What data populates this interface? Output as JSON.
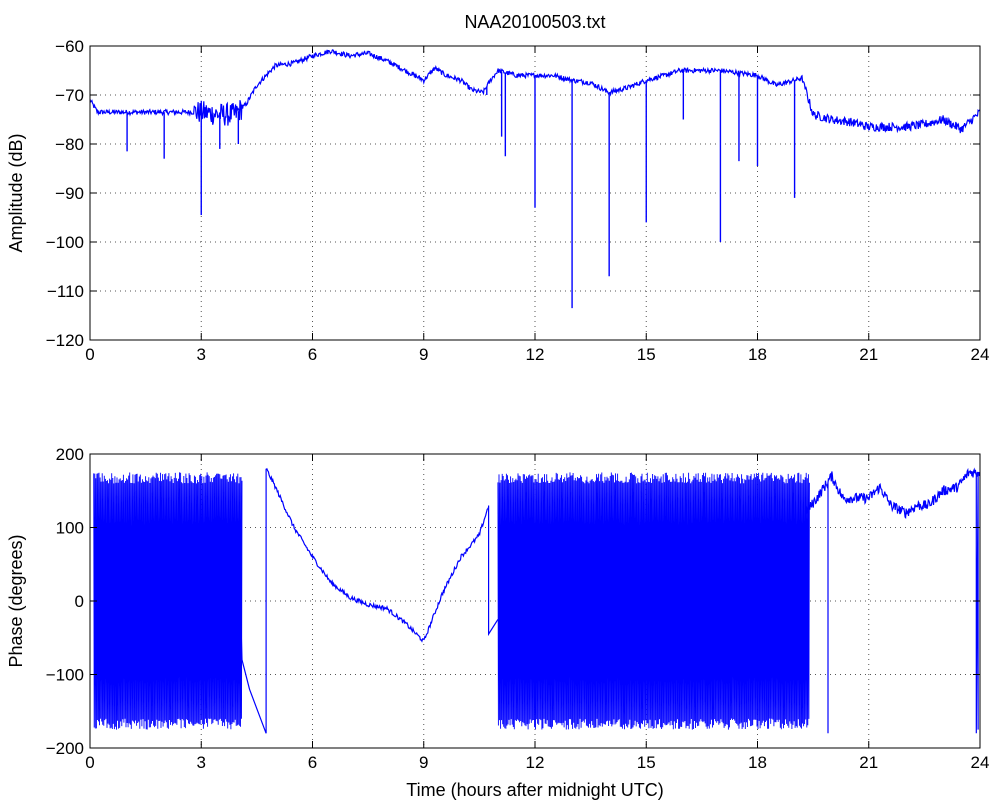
{
  "figure_title": "NAA20100503.txt",
  "colors": {
    "line": "#0000ff",
    "axes": "#000000",
    "grid": "#555555",
    "background": "#ffffff"
  },
  "chart_data": [
    {
      "type": "line",
      "title": "NAA20100503.txt",
      "xlabel": "",
      "ylabel": "Amplitude (dB)",
      "xlim": [
        0,
        24
      ],
      "ylim": [
        -120,
        -60
      ],
      "xticks": [
        0,
        3,
        6,
        9,
        12,
        15,
        18,
        21,
        24
      ],
      "yticks": [
        -60,
        -70,
        -80,
        -90,
        -100,
        -110,
        -120
      ],
      "grid": true,
      "series": [
        {
          "x": [
            0,
            0.2,
            0.5,
            1.0,
            1.5,
            2.0,
            2.5,
            3.0,
            3.5,
            3.9,
            4.2,
            4.5,
            5.0,
            5.5,
            6.0,
            6.5,
            7.0,
            7.5,
            8.0,
            8.5,
            9.0,
            9.3,
            9.6,
            10.0,
            10.3,
            10.6,
            10.8,
            11.0,
            11.5,
            12.0,
            12.5,
            13.0,
            13.5,
            14.0,
            14.5,
            15.0,
            15.5,
            15.9,
            16.5,
            17.0,
            17.5,
            18.0,
            18.5,
            19.0,
            19.2,
            19.5,
            20.0,
            20.5,
            21.0,
            21.5,
            22.0,
            22.5,
            23.0,
            23.5,
            24.0
          ],
          "values": [
            -71,
            -73.5,
            -73.5,
            -73.5,
            -73.5,
            -73.5,
            -73.5,
            -73.5,
            -74,
            -74,
            -72,
            -68,
            -64,
            -63.5,
            -62,
            -61,
            -62,
            -61.5,
            -63,
            -65,
            -67,
            -64.5,
            -66,
            -67,
            -69,
            -69.5,
            -67,
            -65,
            -66,
            -66,
            -66,
            -67,
            -67.5,
            -69.5,
            -68.5,
            -67,
            -66,
            -65,
            -65,
            -65,
            -65.5,
            -66,
            -68,
            -67,
            -66.5,
            -74,
            -75,
            -75.5,
            -76.5,
            -76.5,
            -76.5,
            -76,
            -75,
            -77,
            -73.5
          ]
        },
        {
          "type": "spikes",
          "x": [
            1.0,
            2.0,
            3.0,
            3.5,
            4.0,
            10.7,
            11.1,
            11.2,
            12.0,
            13.0,
            14.0,
            15.0,
            16.0,
            17.0,
            17.5,
            18.0,
            19.0
          ],
          "values": [
            -81.5,
            -83,
            -94.5,
            -81,
            -80,
            -70,
            -78.5,
            -82.5,
            -93,
            -113.5,
            -107,
            -96,
            -75,
            -100,
            -83.5,
            -84.5,
            -91
          ]
        }
      ]
    },
    {
      "type": "line",
      "title": "",
      "xlabel": "Time (hours after midnight UTC)",
      "ylabel": "Phase (degrees)",
      "xlim": [
        0,
        24
      ],
      "ylim": [
        -200,
        200
      ],
      "xticks": [
        0,
        3,
        6,
        9,
        12,
        15,
        18,
        21,
        24
      ],
      "yticks": [
        200,
        100,
        0,
        -100,
        -200
      ],
      "grid": true,
      "series": [
        {
          "x": [
            4.75,
            5.0,
            5.5,
            6.0,
            6.5,
            7.0,
            7.5,
            8.0,
            8.5,
            9.0,
            9.5,
            10.0,
            10.5,
            10.75
          ],
          "values": [
            180,
            155,
            100,
            60,
            25,
            5,
            -5,
            -10,
            -30,
            -55,
            10,
            60,
            90,
            130
          ]
        },
        {
          "x": [
            19.3,
            19.6,
            20.0,
            20.3,
            20.6,
            21.0,
            21.3,
            21.6,
            22.0,
            22.3,
            22.6,
            23.0,
            23.4,
            23.7,
            24.0
          ],
          "values": [
            120,
            140,
            170,
            140,
            140,
            140,
            155,
            130,
            120,
            130,
            130,
            150,
            155,
            175,
            175
          ]
        },
        {
          "type": "oscillation",
          "range_x": [
            [
              0.1,
              4.1
            ],
            [
              11.0,
              19.4
            ]
          ],
          "amplitude": [
            -180,
            180
          ]
        }
      ]
    }
  ]
}
